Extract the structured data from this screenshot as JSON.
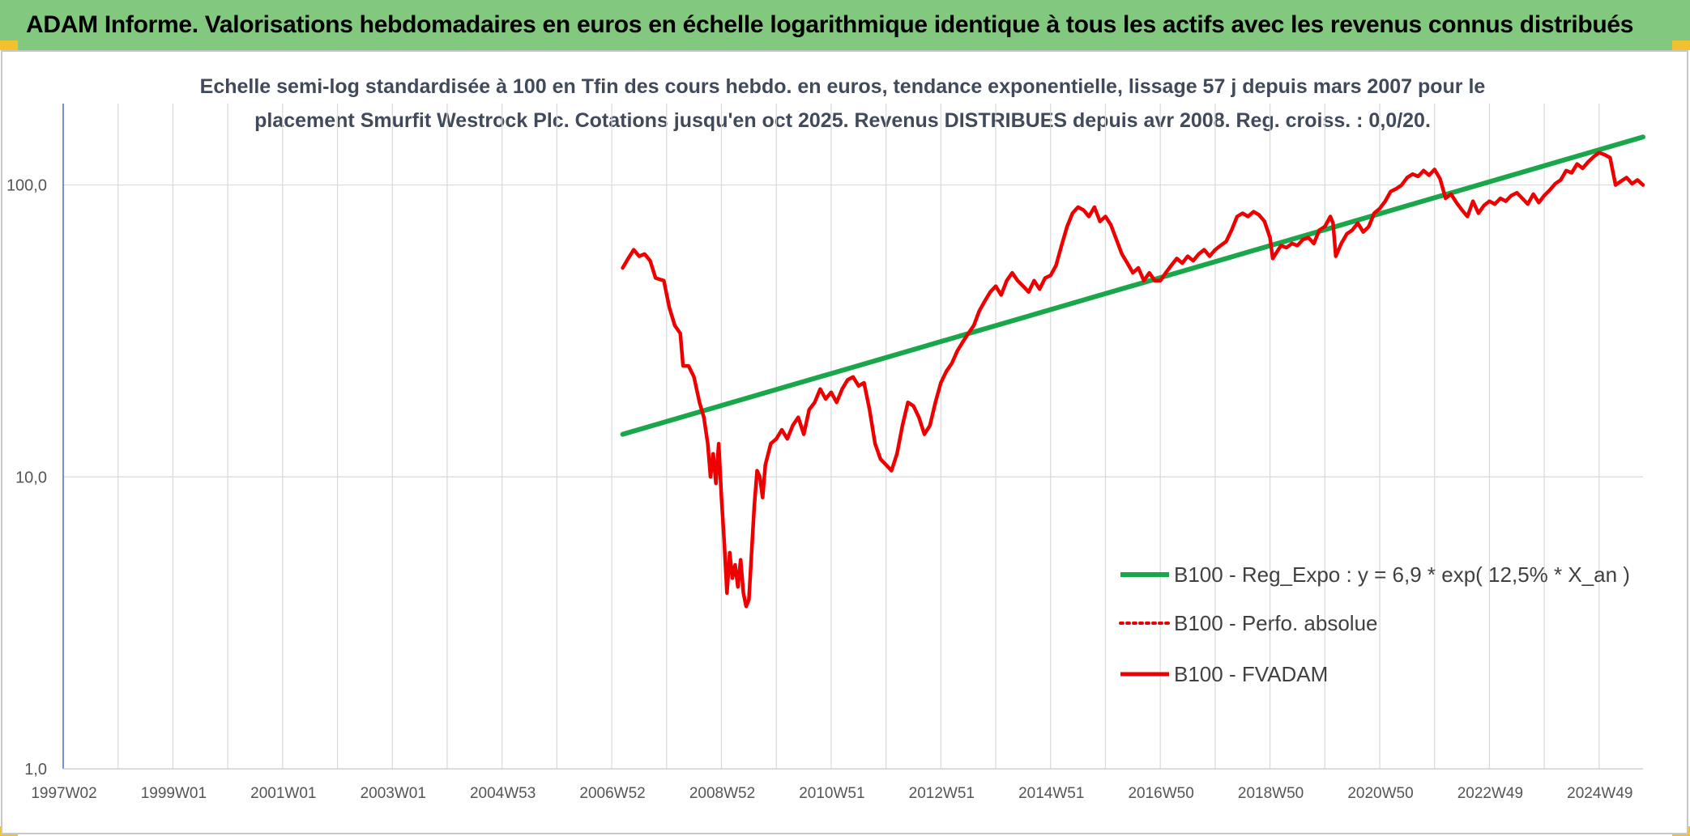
{
  "header": {
    "title": "ADAM Informe. Valorisations hebdomadaires en euros en échelle logarithmique identique à tous les actifs avec les revenus connus distribués"
  },
  "colors": {
    "header_bg": "#82c87e",
    "regression": "#1aa64a",
    "fvadam": "#ee0000",
    "perfo": "#ee0000",
    "grid": "#d9d9d9",
    "axis": "#4472c4",
    "corner_accent": "#f2c12e"
  },
  "chart_data": {
    "type": "line",
    "title_lines": [
      "Echelle semi-log standardisée à 100 en Tfin des cours hebdo. en euros, tendance exponentielle, lissage 57 j depuis mars 2007 pour le",
      "placement Smurfit Westrock Plc. Cotations jusqu'en oct 2025. Revenus DISTRIBUES depuis avr 2008. Reg. croiss. : 0,0/20."
    ],
    "y_scale": "log",
    "ylim": [
      1,
      190
    ],
    "yticks": [
      {
        "value": 1,
        "label": "1,0"
      },
      {
        "value": 10,
        "label": "10,0"
      },
      {
        "value": 100,
        "label": "100,0"
      }
    ],
    "xlim": [
      1997.0,
      2025.8
    ],
    "xticks": [
      {
        "value": 1997.0,
        "label": "1997W02"
      },
      {
        "value": 1999.0,
        "label": "1999W01"
      },
      {
        "value": 2001.0,
        "label": "2001W01"
      },
      {
        "value": 2003.0,
        "label": "2003W01"
      },
      {
        "value": 2005.0,
        "label": "2004W53"
      },
      {
        "value": 2007.0,
        "label": "2006W52"
      },
      {
        "value": 2009.0,
        "label": "2008W52"
      },
      {
        "value": 2011.0,
        "label": "2010W51"
      },
      {
        "value": 2013.0,
        "label": "2012W51"
      },
      {
        "value": 2015.0,
        "label": "2014W51"
      },
      {
        "value": 2017.0,
        "label": "2016W50"
      },
      {
        "value": 2019.0,
        "label": "2018W50"
      },
      {
        "value": 2021.0,
        "label": "2020W50"
      },
      {
        "value": 2023.0,
        "label": "2022W49"
      },
      {
        "value": 2025.0,
        "label": "2024W49"
      }
    ],
    "gridlines_x": [
      1997,
      1998,
      1999,
      2000,
      2001,
      2002,
      2003,
      2004,
      2005,
      2006,
      2007,
      2008,
      2009,
      2010,
      2011,
      2012,
      2013,
      2014,
      2015,
      2016,
      2017,
      2018,
      2019,
      2020,
      2021,
      2022,
      2023,
      2024,
      2025
    ],
    "grid": true,
    "legend_position": "right-middle",
    "series": [
      {
        "name": "B100 - Reg_Expo : y = 6,9 * exp( 12,5% *  X_an )",
        "style": "solid-thick",
        "color": "#1aa64a",
        "points": [
          [
            2007.2,
            14.0
          ],
          [
            2025.8,
            146
          ]
        ]
      },
      {
        "name": "B100 - Perfo. absolue",
        "style": "dotted",
        "color": "#ee0000",
        "points": []
      },
      {
        "name": "B100 - FVADAM",
        "style": "solid",
        "color": "#ee0000",
        "points": [
          [
            2007.2,
            52
          ],
          [
            2007.3,
            56
          ],
          [
            2007.4,
            60
          ],
          [
            2007.5,
            57
          ],
          [
            2007.6,
            58
          ],
          [
            2007.7,
            55
          ],
          [
            2007.8,
            48
          ],
          [
            2007.95,
            47
          ],
          [
            2008.05,
            38
          ],
          [
            2008.15,
            33
          ],
          [
            2008.25,
            31
          ],
          [
            2008.3,
            24
          ],
          [
            2008.4,
            24
          ],
          [
            2008.5,
            22
          ],
          [
            2008.6,
            18
          ],
          [
            2008.68,
            16
          ],
          [
            2008.75,
            13
          ],
          [
            2008.8,
            10
          ],
          [
            2008.85,
            12
          ],
          [
            2008.9,
            9.5
          ],
          [
            2008.95,
            13
          ],
          [
            2009.0,
            8.5
          ],
          [
            2009.05,
            6
          ],
          [
            2009.1,
            4.0
          ],
          [
            2009.15,
            5.5
          ],
          [
            2009.2,
            4.5
          ],
          [
            2009.25,
            5.0
          ],
          [
            2009.3,
            4.2
          ],
          [
            2009.35,
            5.2
          ],
          [
            2009.4,
            4.0
          ],
          [
            2009.45,
            3.6
          ],
          [
            2009.5,
            3.8
          ],
          [
            2009.55,
            5.5
          ],
          [
            2009.6,
            8.0
          ],
          [
            2009.65,
            10.5
          ],
          [
            2009.7,
            10.0
          ],
          [
            2009.75,
            8.5
          ],
          [
            2009.8,
            11.0
          ],
          [
            2009.9,
            13.0
          ],
          [
            2010.0,
            13.5
          ],
          [
            2010.1,
            14.5
          ],
          [
            2010.2,
            13.5
          ],
          [
            2010.3,
            15.0
          ],
          [
            2010.4,
            16.0
          ],
          [
            2010.5,
            14.0
          ],
          [
            2010.6,
            17.0
          ],
          [
            2010.7,
            18.0
          ],
          [
            2010.8,
            20.0
          ],
          [
            2010.9,
            18.5
          ],
          [
            2011.0,
            19.5
          ],
          [
            2011.1,
            18.0
          ],
          [
            2011.2,
            20.0
          ],
          [
            2011.3,
            21.5
          ],
          [
            2011.4,
            22.0
          ],
          [
            2011.5,
            20.5
          ],
          [
            2011.6,
            21.0
          ],
          [
            2011.7,
            17.0
          ],
          [
            2011.8,
            13.0
          ],
          [
            2011.9,
            11.5
          ],
          [
            2012.0,
            11.0
          ],
          [
            2012.1,
            10.5
          ],
          [
            2012.2,
            12.0
          ],
          [
            2012.3,
            15.0
          ],
          [
            2012.4,
            18.0
          ],
          [
            2012.5,
            17.5
          ],
          [
            2012.6,
            16.0
          ],
          [
            2012.7,
            14.0
          ],
          [
            2012.8,
            15.0
          ],
          [
            2012.9,
            18.0
          ],
          [
            2013.0,
            21.0
          ],
          [
            2013.1,
            23.0
          ],
          [
            2013.2,
            24.5
          ],
          [
            2013.3,
            27.0
          ],
          [
            2013.4,
            29.0
          ],
          [
            2013.5,
            31.0
          ],
          [
            2013.6,
            33.0
          ],
          [
            2013.7,
            37.0
          ],
          [
            2013.8,
            40.0
          ],
          [
            2013.9,
            43.0
          ],
          [
            2014.0,
            45.0
          ],
          [
            2014.1,
            42.0
          ],
          [
            2014.2,
            47.0
          ],
          [
            2014.3,
            50.0
          ],
          [
            2014.4,
            47.0
          ],
          [
            2014.5,
            45.0
          ],
          [
            2014.6,
            43.0
          ],
          [
            2014.7,
            47.0
          ],
          [
            2014.8,
            44.0
          ],
          [
            2014.9,
            48.0
          ],
          [
            2015.0,
            49.0
          ],
          [
            2015.1,
            53.0
          ],
          [
            2015.2,
            62.0
          ],
          [
            2015.3,
            72.0
          ],
          [
            2015.4,
            80.0
          ],
          [
            2015.5,
            84.0
          ],
          [
            2015.6,
            82.0
          ],
          [
            2015.7,
            78.0
          ],
          [
            2015.8,
            84.0
          ],
          [
            2015.9,
            75.0
          ],
          [
            2016.0,
            78.0
          ],
          [
            2016.1,
            73.0
          ],
          [
            2016.2,
            65.0
          ],
          [
            2016.3,
            58.0
          ],
          [
            2016.4,
            54.0
          ],
          [
            2016.5,
            50.0
          ],
          [
            2016.6,
            52.0
          ],
          [
            2016.7,
            47.0
          ],
          [
            2016.8,
            50.0
          ],
          [
            2016.9,
            47.0
          ],
          [
            2017.0,
            47.0
          ],
          [
            2017.1,
            50.0
          ],
          [
            2017.2,
            53.0
          ],
          [
            2017.3,
            56.0
          ],
          [
            2017.4,
            54.0
          ],
          [
            2017.5,
            57.0
          ],
          [
            2017.6,
            55.0
          ],
          [
            2017.7,
            58.0
          ],
          [
            2017.8,
            60.0
          ],
          [
            2017.9,
            57.0
          ],
          [
            2018.0,
            60.0
          ],
          [
            2018.1,
            62.0
          ],
          [
            2018.2,
            64.0
          ],
          [
            2018.3,
            70.0
          ],
          [
            2018.4,
            78.0
          ],
          [
            2018.5,
            80.0
          ],
          [
            2018.6,
            78.0
          ],
          [
            2018.7,
            81.0
          ],
          [
            2018.8,
            79.0
          ],
          [
            2018.9,
            75.0
          ],
          [
            2019.0,
            66.0
          ],
          [
            2019.05,
            56.0
          ],
          [
            2019.1,
            58.0
          ],
          [
            2019.2,
            62.0
          ],
          [
            2019.3,
            61.0
          ],
          [
            2019.4,
            63.0
          ],
          [
            2019.5,
            62.0
          ],
          [
            2019.6,
            65.0
          ],
          [
            2019.7,
            66.0
          ],
          [
            2019.8,
            63.0
          ],
          [
            2019.9,
            70.0
          ],
          [
            2020.0,
            72.0
          ],
          [
            2020.1,
            78.0
          ],
          [
            2020.15,
            74.0
          ],
          [
            2020.2,
            57.0
          ],
          [
            2020.3,
            63.0
          ],
          [
            2020.4,
            68.0
          ],
          [
            2020.5,
            70.0
          ],
          [
            2020.6,
            74.0
          ],
          [
            2020.7,
            69.0
          ],
          [
            2020.8,
            72.0
          ],
          [
            2020.9,
            80.0
          ],
          [
            2021.0,
            83.0
          ],
          [
            2021.1,
            88.0
          ],
          [
            2021.2,
            95.0
          ],
          [
            2021.3,
            97.0
          ],
          [
            2021.4,
            100.0
          ],
          [
            2021.5,
            106.0
          ],
          [
            2021.6,
            109.0
          ],
          [
            2021.7,
            107.0
          ],
          [
            2021.8,
            112.0
          ],
          [
            2021.9,
            108.0
          ],
          [
            2022.0,
            113.0
          ],
          [
            2022.1,
            105.0
          ],
          [
            2022.2,
            90.0
          ],
          [
            2022.3,
            93.0
          ],
          [
            2022.4,
            87.0
          ],
          [
            2022.5,
            82.0
          ],
          [
            2022.6,
            78.0
          ],
          [
            2022.7,
            88.0
          ],
          [
            2022.8,
            80.0
          ],
          [
            2022.9,
            85.0
          ],
          [
            2023.0,
            88.0
          ],
          [
            2023.1,
            86.0
          ],
          [
            2023.2,
            90.0
          ],
          [
            2023.3,
            88.0
          ],
          [
            2023.4,
            92.0
          ],
          [
            2023.5,
            94.0
          ],
          [
            2023.6,
            90.0
          ],
          [
            2023.7,
            86.0
          ],
          [
            2023.8,
            93.0
          ],
          [
            2023.9,
            87.0
          ],
          [
            2024.0,
            92.0
          ],
          [
            2024.1,
            96.0
          ],
          [
            2024.2,
            101.0
          ],
          [
            2024.3,
            104.0
          ],
          [
            2024.4,
            112.0
          ],
          [
            2024.5,
            110.0
          ],
          [
            2024.6,
            118.0
          ],
          [
            2024.7,
            114.0
          ],
          [
            2024.8,
            120.0
          ],
          [
            2024.9,
            125.0
          ],
          [
            2025.0,
            129.0
          ],
          [
            2025.1,
            127.0
          ],
          [
            2025.2,
            124.0
          ],
          [
            2025.3,
            100.0
          ],
          [
            2025.4,
            103.0
          ],
          [
            2025.5,
            106.0
          ],
          [
            2025.6,
            101.0
          ],
          [
            2025.7,
            104.0
          ],
          [
            2025.8,
            100.0
          ]
        ]
      }
    ]
  }
}
